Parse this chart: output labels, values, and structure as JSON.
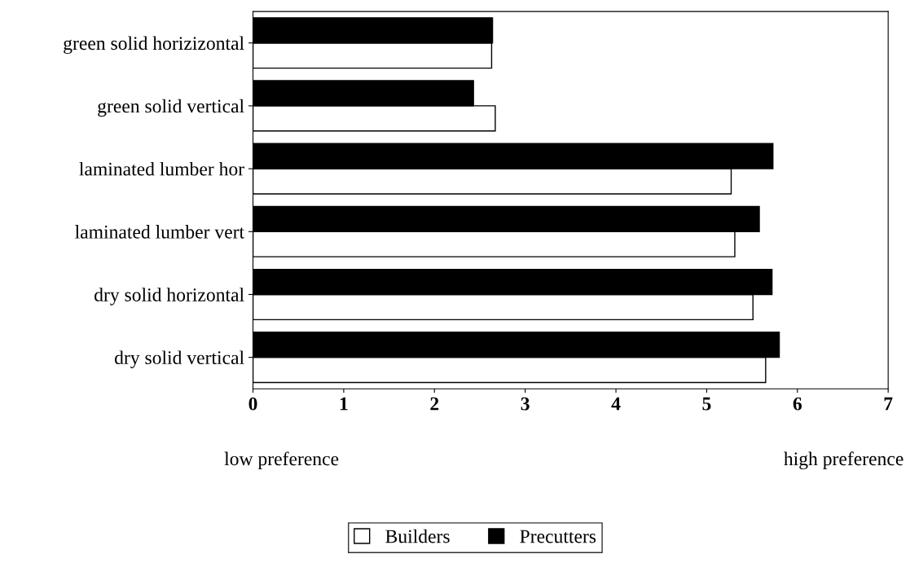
{
  "chart_data": {
    "type": "bar",
    "orientation": "horizontal",
    "categories": [
      "green solid horizizontal",
      "green solid vertical",
      "laminated lumber hor",
      "laminated lumber vert",
      "dry solid horizontal",
      "dry solid vertical"
    ],
    "series": [
      {
        "name": "Builders",
        "color": "#ffffff",
        "values": [
          2.63,
          2.67,
          5.27,
          5.31,
          5.51,
          5.65
        ]
      },
      {
        "name": "Precutters",
        "color": "#000000",
        "values": [
          2.64,
          2.43,
          5.73,
          5.58,
          5.72,
          5.8
        ]
      }
    ],
    "xlim": [
      0,
      7
    ],
    "xticks": [
      0,
      1,
      2,
      3,
      4,
      5,
      6,
      7
    ],
    "annotations": [
      "low preference",
      "high preference"
    ],
    "legend": "bottom",
    "grid": false
  }
}
